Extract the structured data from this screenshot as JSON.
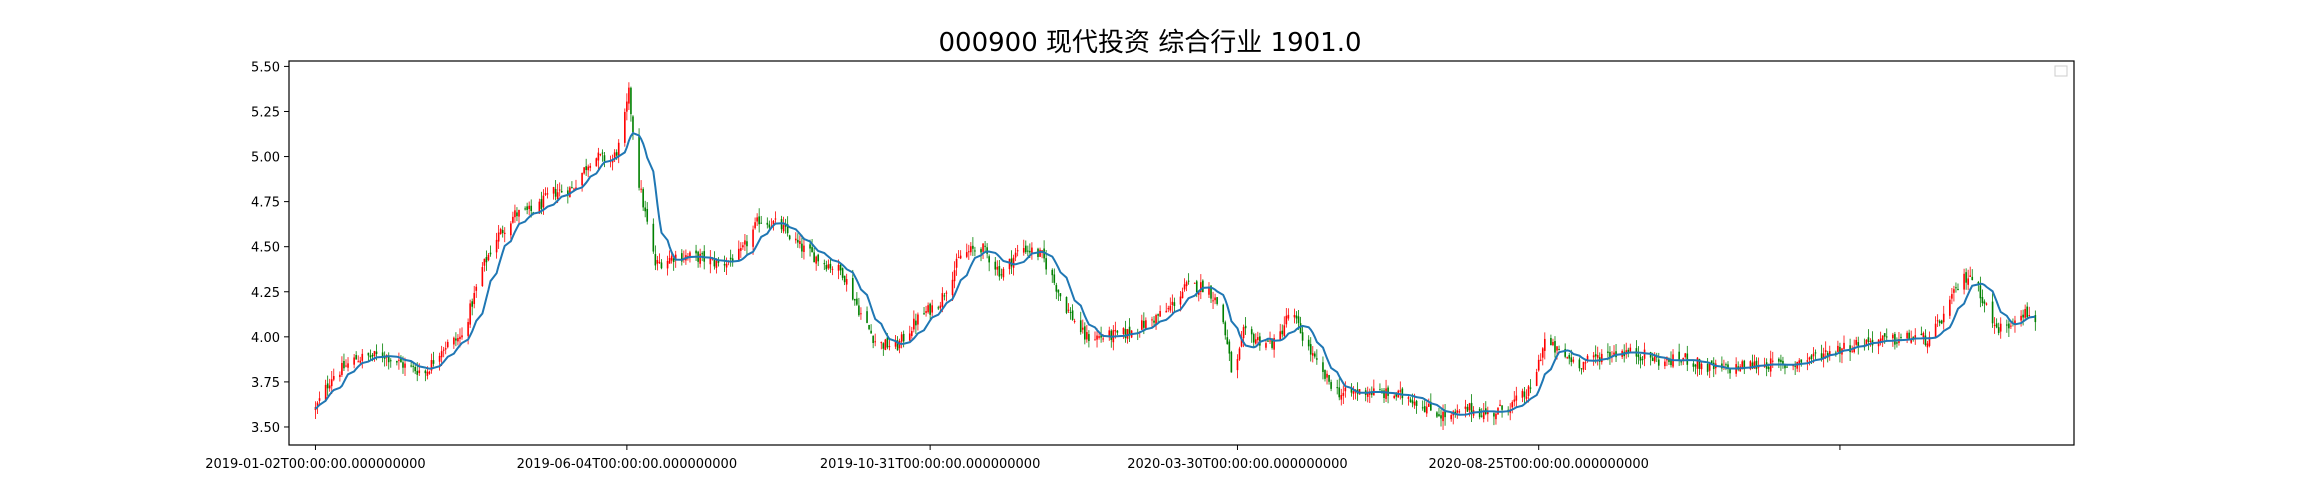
{
  "chart_data": {
    "type": "candlestick",
    "title": "000900 现代投资 综合行业 1901.0",
    "xlabel": "",
    "ylabel": "",
    "ylim": [
      3.4,
      5.53
    ],
    "yticks": [
      3.5,
      3.75,
      4.0,
      4.25,
      4.5,
      4.75,
      5.0,
      5.25,
      5.5
    ],
    "ytick_labels": [
      "3.50",
      "3.75",
      "4.00",
      "4.25",
      "4.50",
      "4.75",
      "5.00",
      "5.25",
      "5.50"
    ],
    "x_range": [
      "2018-12-20",
      "2021-05-15"
    ],
    "xticks": [
      "2019-01-02",
      "2019-06-04",
      "2019-10-31",
      "2020-03-30",
      "2020-08-25",
      "2021-01-20"
    ],
    "xtick_labels": [
      "2019-01-02T00:00:00.000000000",
      "2019-06-04T00:00:00.000000000",
      "2019-10-31T00:00:00.000000000",
      "2020-03-30T00:00:00.000000000",
      "2020-08-25T00:00:00.000000000",
      ""
    ],
    "legend": "top-right, empty",
    "grid": false,
    "colors": {
      "up": "#ff0000",
      "down": "#008000",
      "moving_average": "#1f77b4"
    },
    "price_path": [
      [
        "2019-01-02",
        3.6
      ],
      [
        "2019-01-10",
        3.78
      ],
      [
        "2019-01-22",
        3.88
      ],
      [
        "2019-02-05",
        3.9
      ],
      [
        "2019-02-15",
        3.84
      ],
      [
        "2019-02-25",
        3.8
      ],
      [
        "2019-03-05",
        3.94
      ],
      [
        "2019-03-15",
        4.0
      ],
      [
        "2019-03-25",
        4.38
      ],
      [
        "2019-04-01",
        4.55
      ],
      [
        "2019-04-10",
        4.68
      ],
      [
        "2019-04-20",
        4.7
      ],
      [
        "2019-04-28",
        4.8
      ],
      [
        "2019-05-08",
        4.82
      ],
      [
        "2019-05-18",
        5.0
      ],
      [
        "2019-05-28",
        4.98
      ],
      [
        "2019-06-01",
        5.08
      ],
      [
        "2019-06-05",
        5.35
      ],
      [
        "2019-06-10",
        4.85
      ],
      [
        "2019-06-18",
        4.4
      ],
      [
        "2019-06-28",
        4.45
      ],
      [
        "2019-07-10",
        4.44
      ],
      [
        "2019-07-20",
        4.4
      ],
      [
        "2019-07-30",
        4.46
      ],
      [
        "2019-08-08",
        4.65
      ],
      [
        "2019-08-18",
        4.62
      ],
      [
        "2019-08-28",
        4.5
      ],
      [
        "2019-09-08",
        4.42
      ],
      [
        "2019-09-18",
        4.36
      ],
      [
        "2019-09-28",
        4.1
      ],
      [
        "2019-10-05",
        3.96
      ],
      [
        "2019-10-15",
        3.95
      ],
      [
        "2019-10-25",
        4.1
      ],
      [
        "2019-11-05",
        4.2
      ],
      [
        "2019-11-15",
        4.45
      ],
      [
        "2019-11-25",
        4.5
      ],
      [
        "2019-12-05",
        4.35
      ],
      [
        "2019-12-15",
        4.5
      ],
      [
        "2019-12-25",
        4.45
      ],
      [
        "2020-01-05",
        4.18
      ],
      [
        "2020-01-15",
        4.0
      ],
      [
        "2020-01-25",
        4.0
      ],
      [
        "2020-02-05",
        4.02
      ],
      [
        "2020-02-15",
        4.08
      ],
      [
        "2020-02-25",
        4.15
      ],
      [
        "2020-03-05",
        4.28
      ],
      [
        "2020-03-15",
        4.28
      ],
      [
        "2020-03-22",
        4.15
      ],
      [
        "2020-03-28",
        3.75
      ],
      [
        "2020-04-02",
        4.02
      ],
      [
        "2020-04-10",
        3.98
      ],
      [
        "2020-04-18",
        3.96
      ],
      [
        "2020-04-25",
        4.15
      ],
      [
        "2020-05-02",
        3.98
      ],
      [
        "2020-05-10",
        3.8
      ],
      [
        "2020-05-20",
        3.68
      ],
      [
        "2020-06-01",
        3.7
      ],
      [
        "2020-06-12",
        3.68
      ],
      [
        "2020-06-22",
        3.67
      ],
      [
        "2020-07-02",
        3.6
      ],
      [
        "2020-07-12",
        3.55
      ],
      [
        "2020-07-22",
        3.6
      ],
      [
        "2020-08-01",
        3.57
      ],
      [
        "2020-08-11",
        3.62
      ],
      [
        "2020-08-21",
        3.7
      ],
      [
        "2020-08-28",
        3.98
      ],
      [
        "2020-09-05",
        3.9
      ],
      [
        "2020-09-15",
        3.85
      ],
      [
        "2020-09-25",
        3.9
      ],
      [
        "2020-10-05",
        3.92
      ],
      [
        "2020-10-15",
        3.9
      ],
      [
        "2020-10-25",
        3.86
      ],
      [
        "2020-11-05",
        3.88
      ],
      [
        "2020-11-15",
        3.83
      ],
      [
        "2020-11-25",
        3.82
      ],
      [
        "2020-12-05",
        3.84
      ],
      [
        "2020-12-15",
        3.85
      ],
      [
        "2020-12-25",
        3.84
      ],
      [
        "2021-01-05",
        3.88
      ],
      [
        "2021-01-15",
        3.92
      ],
      [
        "2021-01-25",
        3.95
      ],
      [
        "2021-02-05",
        3.98
      ],
      [
        "2021-02-15",
        3.98
      ],
      [
        "2021-02-25",
        4.0
      ],
      [
        "2021-03-05",
        3.98
      ],
      [
        "2021-03-12",
        4.12
      ],
      [
        "2021-03-20",
        4.3
      ],
      [
        "2021-03-25",
        4.35
      ],
      [
        "2021-04-01",
        4.2
      ],
      [
        "2021-04-06",
        4.05
      ],
      [
        "2021-04-12",
        4.05
      ],
      [
        "2021-04-18",
        4.15
      ],
      [
        "2021-04-26",
        4.1
      ]
    ]
  }
}
